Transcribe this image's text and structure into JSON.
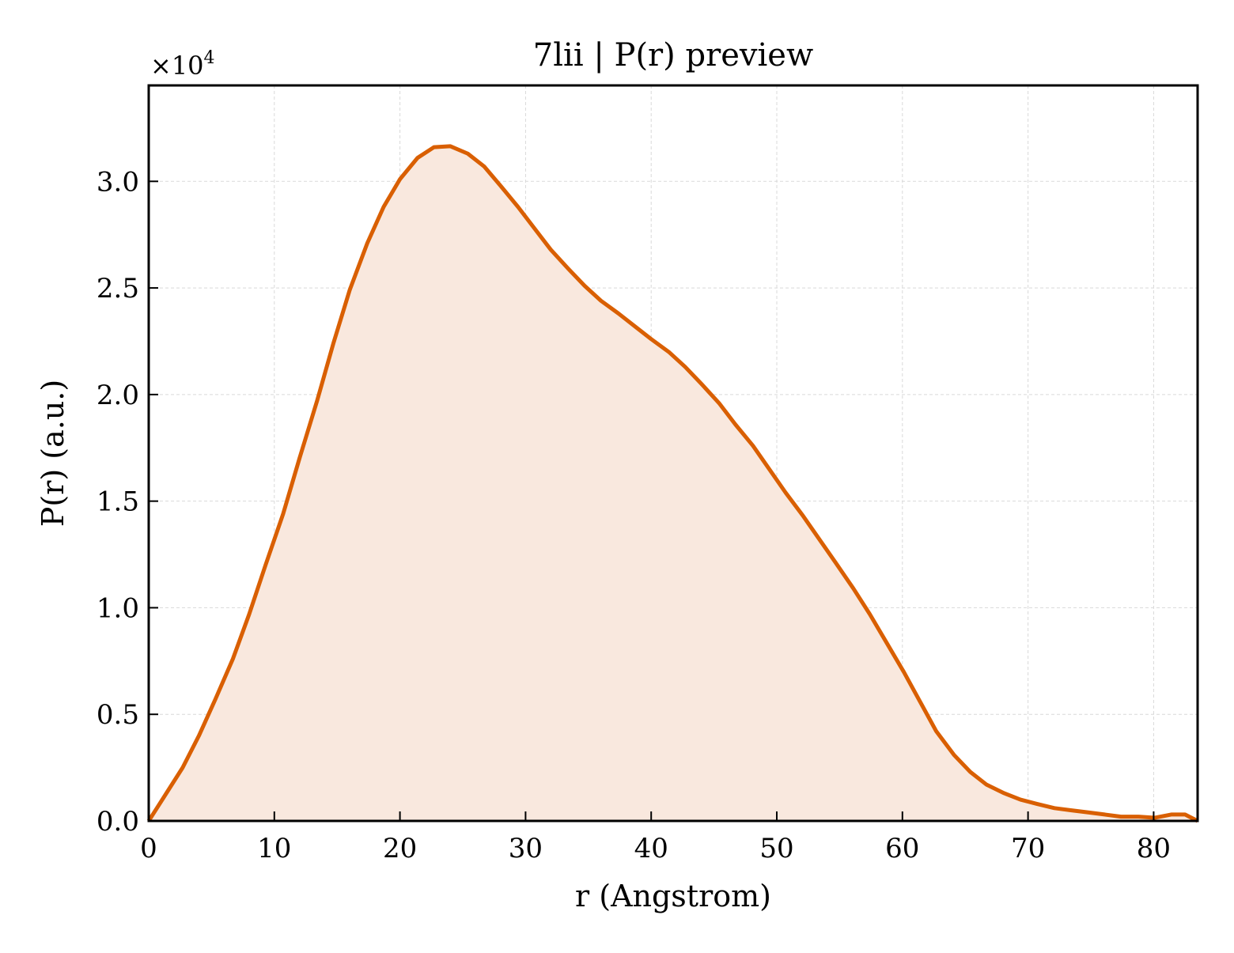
{
  "chart_data": {
    "type": "area",
    "title": "7lii | P(r) preview",
    "xlabel": "r (Angstrom)",
    "ylabel": "P(r) (a.u.)",
    "y_multiplier": {
      "base": "×10",
      "exponent": "4"
    },
    "xlim": [
      0,
      83.5
    ],
    "ylim": [
      0,
      3.45
    ],
    "y_scale_factor": 10000,
    "x_ticks": [
      0,
      10,
      20,
      30,
      40,
      50,
      60,
      70,
      80
    ],
    "x_tick_labels": [
      "0",
      "10",
      "20",
      "30",
      "40",
      "50",
      "60",
      "70",
      "80"
    ],
    "y_ticks": [
      0,
      0.5,
      1.0,
      1.5,
      2.0,
      2.5,
      3.0
    ],
    "y_tick_labels": [
      "0.0",
      "0.5",
      "1.0",
      "1.5",
      "2.0",
      "2.5",
      "3.0"
    ],
    "grid": true,
    "legend": "none",
    "colors": {
      "line": "#d95f02",
      "fill": "#f9e8de",
      "grid": "#d9d9d9",
      "axes": "#000000"
    },
    "series": [
      {
        "x": [
          0,
          1.3,
          2.7,
          4.0,
          5.3,
          6.7,
          8.0,
          9.3,
          10.7,
          12.0,
          13.4,
          14.7,
          16.0,
          17.4,
          18.7,
          20.0,
          21.4,
          22.7,
          24.0,
          25.4,
          26.7,
          28.0,
          29.4,
          30.7,
          32.0,
          33.4,
          34.7,
          36.0,
          37.4,
          38.7,
          40.0,
          41.4,
          42.7,
          44.0,
          45.4,
          46.7,
          48.1,
          49.4,
          50.7,
          52.1,
          53.4,
          54.7,
          56.1,
          57.4,
          58.7,
          60.1,
          61.4,
          62.7,
          64.1,
          65.4,
          66.7,
          68.1,
          69.4,
          70.7,
          72.1,
          73.4,
          74.8,
          76.1,
          77.4,
          78.8,
          80.1,
          81.4,
          82.5,
          83.5
        ],
        "y": [
          0.0,
          0.12,
          0.25,
          0.4,
          0.57,
          0.76,
          0.97,
          1.2,
          1.44,
          1.7,
          1.97,
          2.24,
          2.49,
          2.71,
          2.88,
          3.01,
          3.11,
          3.16,
          3.165,
          3.13,
          3.07,
          2.98,
          2.88,
          2.78,
          2.68,
          2.59,
          2.51,
          2.44,
          2.38,
          2.32,
          2.26,
          2.2,
          2.13,
          2.05,
          1.96,
          1.86,
          1.76,
          1.65,
          1.54,
          1.43,
          1.32,
          1.21,
          1.09,
          0.97,
          0.84,
          0.7,
          0.56,
          0.42,
          0.31,
          0.23,
          0.17,
          0.13,
          0.1,
          0.08,
          0.06,
          0.05,
          0.04,
          0.03,
          0.02,
          0.02,
          0.015,
          0.03,
          0.03,
          0.0
        ]
      }
    ]
  }
}
